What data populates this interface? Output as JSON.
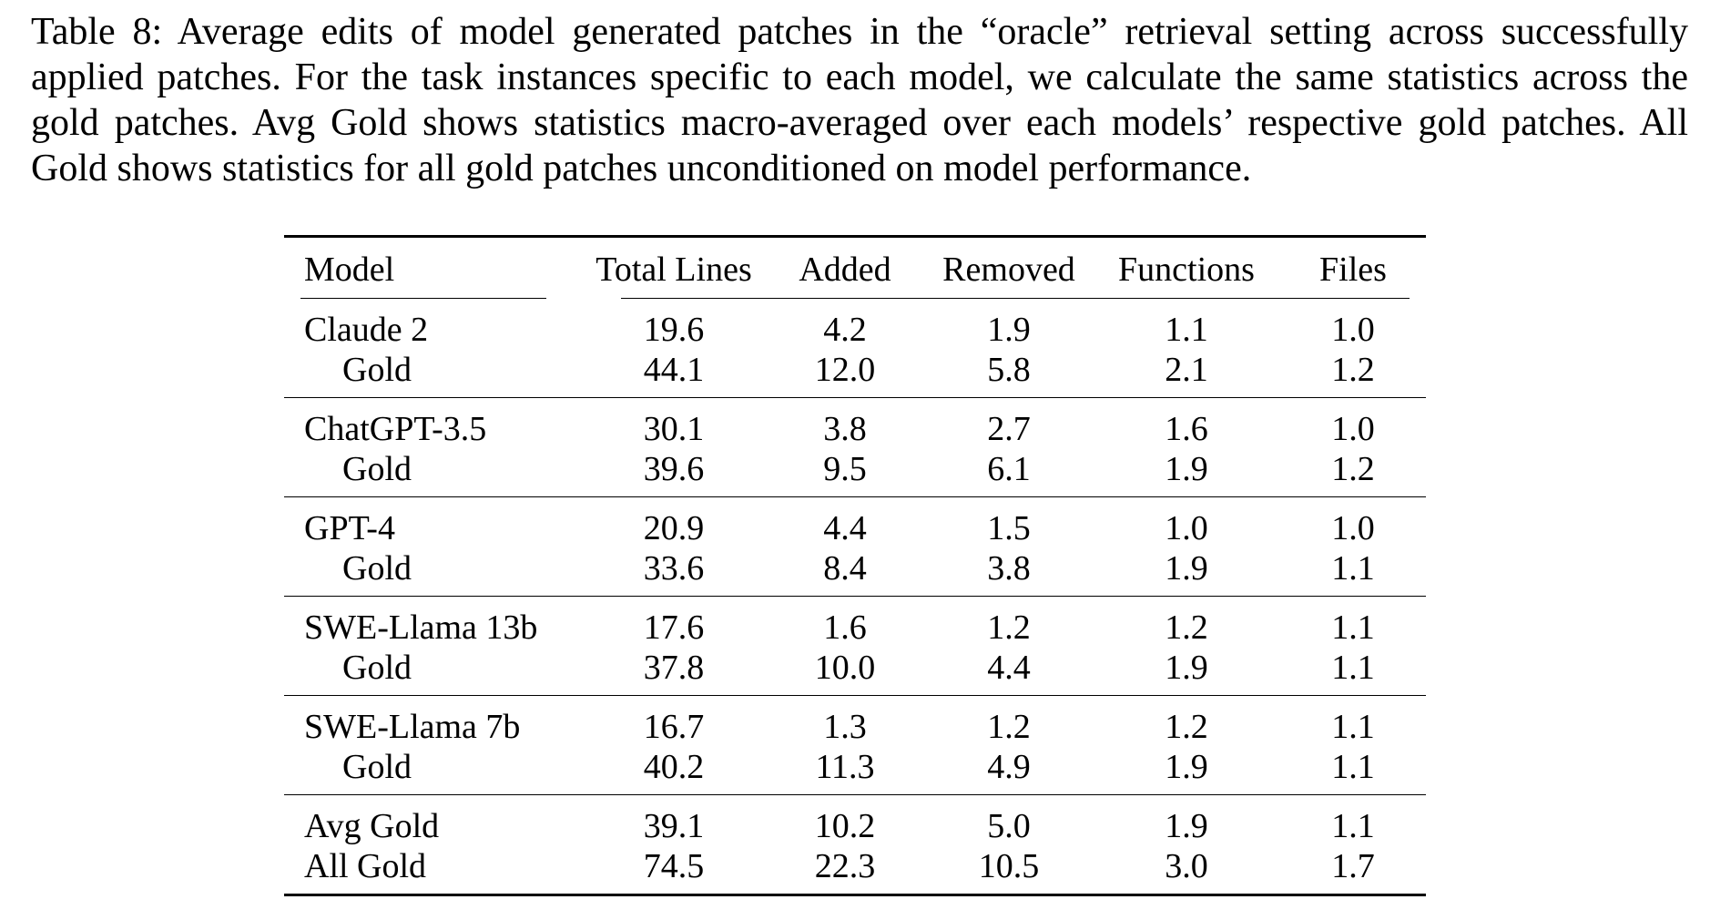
{
  "caption": "Table 8: Average edits of model generated patches in the “oracle” retrieval setting across successfully applied patches. For the task instances specific to each model, we calculate the same statistics across the gold patches. Avg Gold shows statistics macro-averaged over each models’ respective gold patches. All Gold shows statistics for all gold patches unconditioned on model performance.",
  "table": {
    "headers": [
      "Model",
      "Total Lines",
      "Added",
      "Removed",
      "Functions",
      "Files"
    ],
    "groups": [
      {
        "model": {
          "name": "Claude 2",
          "values": [
            "19.6",
            "4.2",
            "1.9",
            "1.1",
            "1.0"
          ]
        },
        "gold": {
          "name": "Gold",
          "values": [
            "44.1",
            "12.0",
            "5.8",
            "2.1",
            "1.2"
          ]
        }
      },
      {
        "model": {
          "name": "ChatGPT-3.5",
          "values": [
            "30.1",
            "3.8",
            "2.7",
            "1.6",
            "1.0"
          ]
        },
        "gold": {
          "name": "Gold",
          "values": [
            "39.6",
            "9.5",
            "6.1",
            "1.9",
            "1.2"
          ]
        }
      },
      {
        "model": {
          "name": "GPT-4",
          "values": [
            "20.9",
            "4.4",
            "1.5",
            "1.0",
            "1.0"
          ]
        },
        "gold": {
          "name": "Gold",
          "values": [
            "33.6",
            "8.4",
            "3.8",
            "1.9",
            "1.1"
          ]
        }
      },
      {
        "model": {
          "name": "SWE-Llama 13b",
          "values": [
            "17.6",
            "1.6",
            "1.2",
            "1.2",
            "1.1"
          ]
        },
        "gold": {
          "name": "Gold",
          "values": [
            "37.8",
            "10.0",
            "4.4",
            "1.9",
            "1.1"
          ]
        }
      },
      {
        "model": {
          "name": "SWE-Llama 7b",
          "values": [
            "16.7",
            "1.3",
            "1.2",
            "1.2",
            "1.1"
          ]
        },
        "gold": {
          "name": "Gold",
          "values": [
            "40.2",
            "11.3",
            "4.9",
            "1.9",
            "1.1"
          ]
        }
      },
      {
        "model": {
          "name": "Avg Gold",
          "values": [
            "39.1",
            "10.2",
            "5.0",
            "1.9",
            "1.1"
          ]
        },
        "gold": {
          "name": "All Gold",
          "values": [
            "74.5",
            "22.3",
            "10.5",
            "3.0",
            "1.7"
          ]
        },
        "gold_flush": true
      }
    ]
  }
}
